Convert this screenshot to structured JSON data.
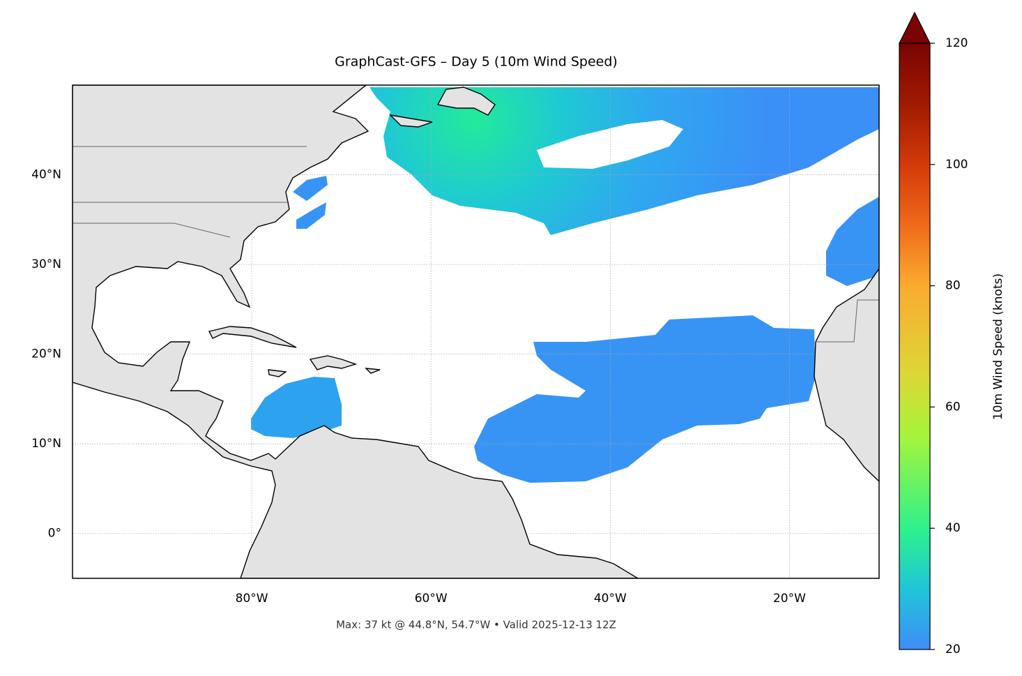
{
  "chart_data": {
    "type": "map",
    "title": "GraphCast-GFS – Day 5 (10m Wind Speed)",
    "annotation": "Max: 37 kt @ 44.8°N, 54.7°W • Valid 2025-12-13 12Z",
    "xlim": [
      -100,
      -10
    ],
    "ylim": [
      -5,
      50
    ],
    "xticks": [
      {
        "value": -80,
        "label": "80°W"
      },
      {
        "value": -60,
        "label": "60°W"
      },
      {
        "value": -40,
        "label": "40°W"
      },
      {
        "value": -20,
        "label": "20°W"
      }
    ],
    "yticks": [
      {
        "value": 0,
        "label": "0°"
      },
      {
        "value": 10,
        "label": "10°N"
      },
      {
        "value": 20,
        "label": "20°N"
      },
      {
        "value": 30,
        "label": "30°N"
      },
      {
        "value": 40,
        "label": "40°N"
      }
    ],
    "grid": true,
    "colorbar": {
      "label": "10m Wind Speed (knots)",
      "lim": [
        20,
        120
      ],
      "ticks": [
        20,
        40,
        60,
        80,
        100,
        120
      ]
    }
  }
}
